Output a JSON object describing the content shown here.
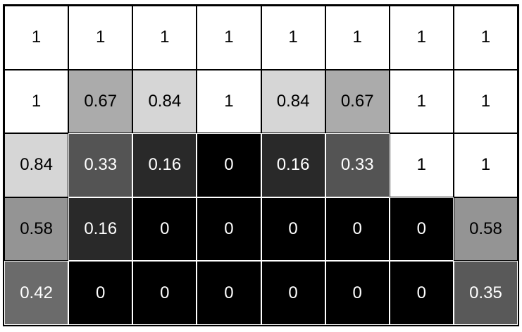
{
  "grid": {
    "rows": 5,
    "cols": 8,
    "values": [
      [
        "1",
        "1",
        "1",
        "1",
        "1",
        "1",
        "1",
        "1"
      ],
      [
        "1",
        "0.67",
        "0.84",
        "1",
        "0.84",
        "0.67",
        "1",
        "1"
      ],
      [
        "0.84",
        "0.33",
        "0.16",
        "0",
        "0.16",
        "0.33",
        "1",
        "1"
      ],
      [
        "0.58",
        "0.16",
        "0",
        "0",
        "0",
        "0",
        "0",
        "0.58"
      ],
      [
        "0.42",
        "0",
        "0",
        "0",
        "0",
        "0",
        "0",
        "0.35"
      ]
    ]
  }
}
